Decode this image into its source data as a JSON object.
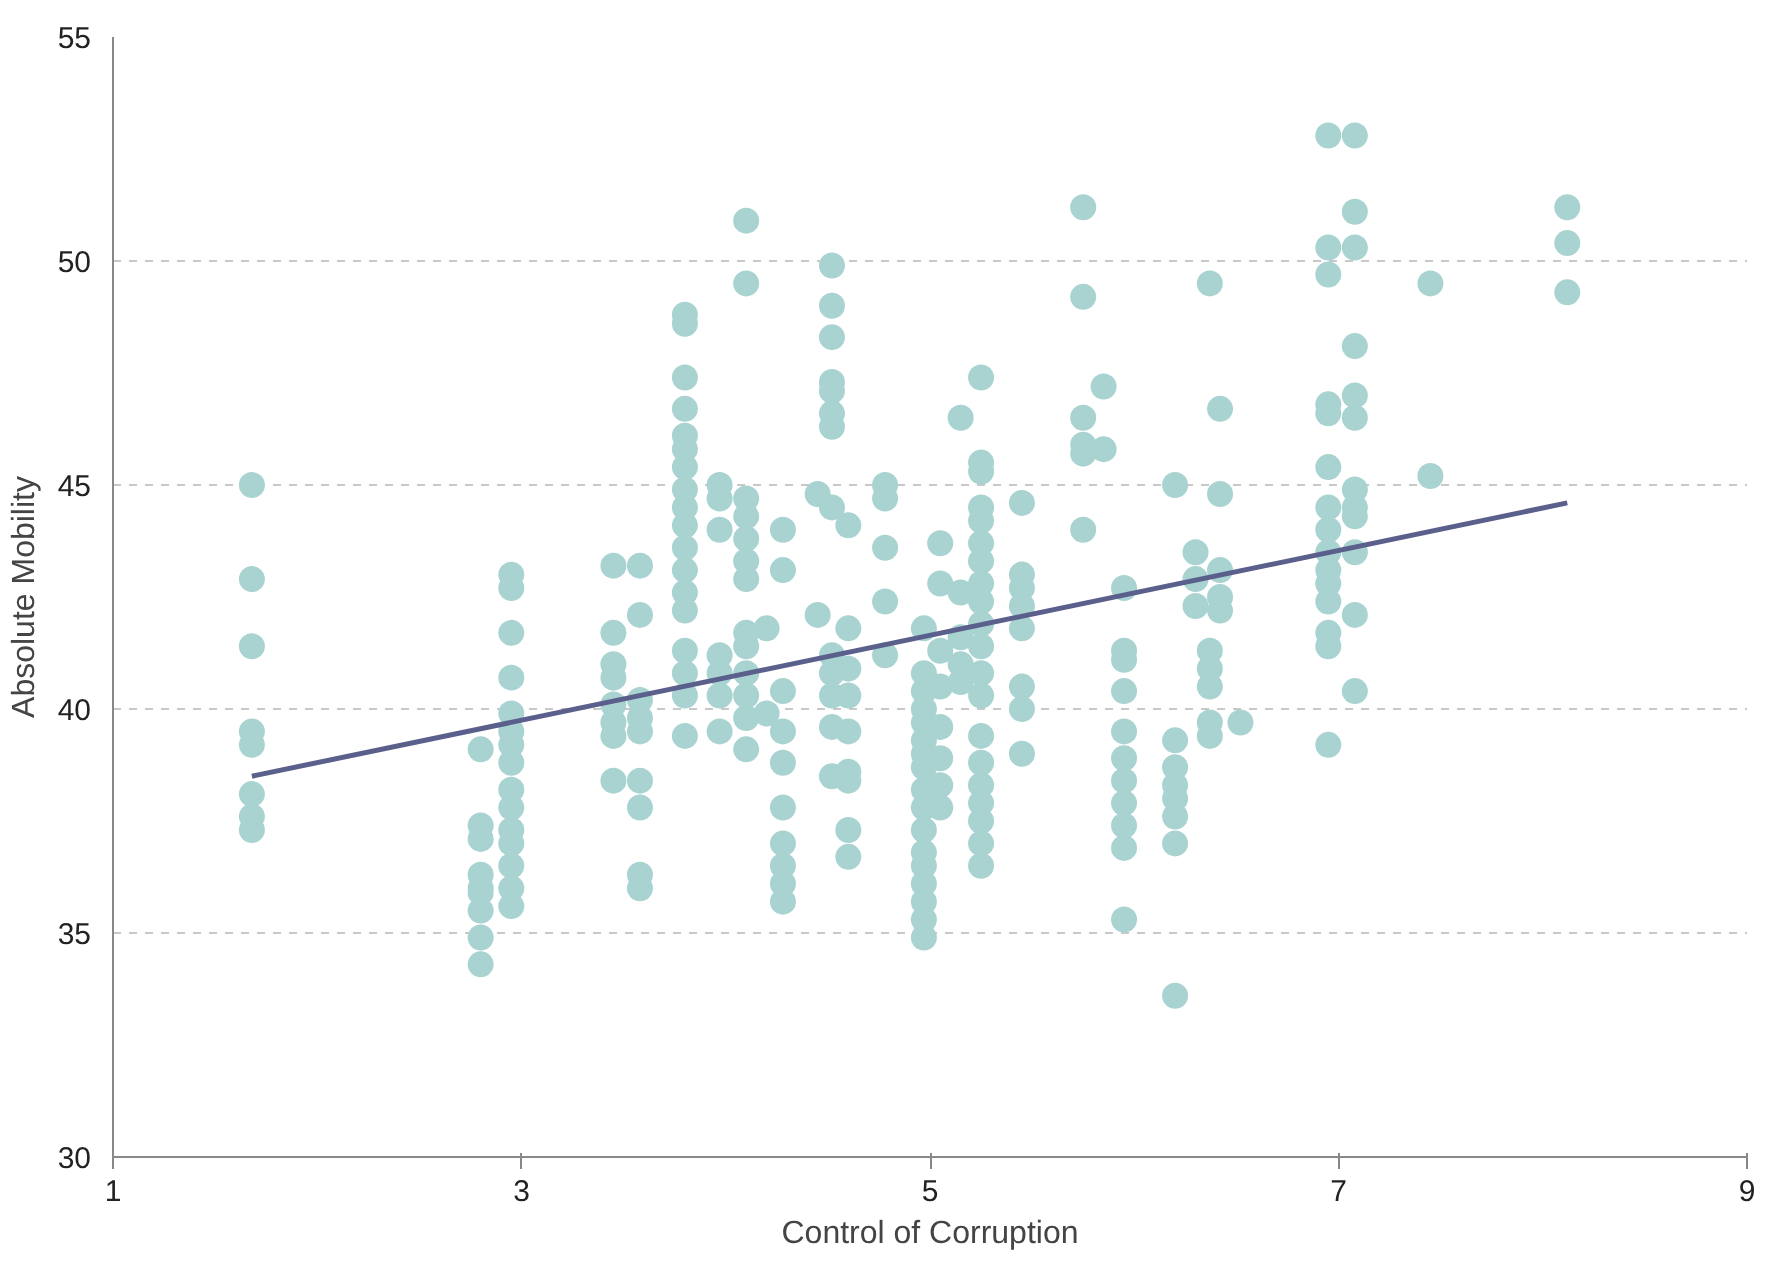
{
  "chart_data": {
    "type": "scatter",
    "xlabel": "Control of Corruption",
    "ylabel": "Absolute Mobility",
    "xlim": [
      1,
      9
    ],
    "xticks": [
      1,
      3,
      5,
      7,
      9
    ],
    "ylim": [
      30,
      55
    ],
    "yticks": [
      30,
      35,
      40,
      45,
      50,
      55
    ],
    "grid": "y",
    "marker": "circle",
    "series": [
      {
        "color": "#a8d3d0",
        "x": [
          1.68,
          1.68,
          1.68,
          1.68,
          1.68,
          1.68,
          1.68,
          1.68,
          2.8,
          2.8,
          2.8,
          2.8,
          2.8,
          2.8,
          2.8,
          2.8,
          2.8,
          2.95,
          2.95,
          2.95,
          2.95,
          2.95,
          2.95,
          2.95,
          2.95,
          2.95,
          2.95,
          2.95,
          2.95,
          2.95,
          2.95,
          2.95,
          3.45,
          3.45,
          3.45,
          3.45,
          3.45,
          3.45,
          3.45,
          3.45,
          3.58,
          3.58,
          3.58,
          3.58,
          3.58,
          3.58,
          3.58,
          3.58,
          3.58,
          3.8,
          3.8,
          3.8,
          3.8,
          3.8,
          3.8,
          3.8,
          3.8,
          3.8,
          3.8,
          3.8,
          3.8,
          3.8,
          3.8,
          3.8,
          3.8,
          3.8,
          3.8,
          3.97,
          3.97,
          3.97,
          3.97,
          3.97,
          3.97,
          3.97,
          4.1,
          4.1,
          4.1,
          4.1,
          4.1,
          4.1,
          4.1,
          4.1,
          4.1,
          4.1,
          4.1,
          4.1,
          4.1,
          4.2,
          4.2,
          4.28,
          4.28,
          4.28,
          4.28,
          4.28,
          4.28,
          4.28,
          4.28,
          4.28,
          4.28,
          4.45,
          4.45,
          4.52,
          4.52,
          4.52,
          4.52,
          4.52,
          4.52,
          4.52,
          4.52,
          4.52,
          4.52,
          4.52,
          4.52,
          4.52,
          4.6,
          4.6,
          4.6,
          4.6,
          4.6,
          4.6,
          4.6,
          4.6,
          4.6,
          4.78,
          4.78,
          4.78,
          4.78,
          4.78,
          4.97,
          4.97,
          4.97,
          4.97,
          4.97,
          4.97,
          4.97,
          4.97,
          4.97,
          4.97,
          4.97,
          4.97,
          4.97,
          4.97,
          4.97,
          4.97,
          4.97,
          5.05,
          5.05,
          5.05,
          5.05,
          5.05,
          5.05,
          5.05,
          5.05,
          5.15,
          5.15,
          5.15,
          5.15,
          5.15,
          5.25,
          5.25,
          5.25,
          5.25,
          5.25,
          5.25,
          5.25,
          5.25,
          5.25,
          5.25,
          5.25,
          5.25,
          5.25,
          5.25,
          5.25,
          5.25,
          5.25,
          5.25,
          5.25,
          5.25,
          5.45,
          5.45,
          5.45,
          5.45,
          5.45,
          5.45,
          5.45,
          5.45,
          5.75,
          5.75,
          5.75,
          5.75,
          5.75,
          5.75,
          5.85,
          5.85,
          5.95,
          5.95,
          5.95,
          5.95,
          5.95,
          5.95,
          5.95,
          5.95,
          5.95,
          5.95,
          5.95,
          6.2,
          6.2,
          6.2,
          6.2,
          6.2,
          6.2,
          6.2,
          6.2,
          6.3,
          6.3,
          6.3,
          6.37,
          6.37,
          6.37,
          6.37,
          6.37,
          6.37,
          6.42,
          6.42,
          6.42,
          6.42,
          6.42,
          6.52,
          6.95,
          6.95,
          6.95,
          6.95,
          6.95,
          6.95,
          6.95,
          6.95,
          6.95,
          6.95,
          6.95,
          6.95,
          6.95,
          6.95,
          6.95,
          7.08,
          7.08,
          7.08,
          7.08,
          7.08,
          7.08,
          7.08,
          7.08,
          7.08,
          7.08,
          7.08,
          7.08,
          7.45,
          7.45,
          8.12,
          8.12,
          8.12
        ],
        "values": [
          45,
          42.9,
          41.4,
          39.5,
          39.2,
          38.1,
          37.6,
          37.3,
          39.1,
          37.4,
          37.1,
          36.3,
          35.9,
          35.5,
          34.9,
          34.3,
          36,
          43,
          42.7,
          41.7,
          40.7,
          39.9,
          39.5,
          39.2,
          38.8,
          38.2,
          37.8,
          37.3,
          37,
          36.5,
          36,
          35.6,
          43.2,
          41.7,
          41,
          40.7,
          40.1,
          39.7,
          39.4,
          38.4,
          43.2,
          42.1,
          40.2,
          39.8,
          39.5,
          38.4,
          37.8,
          36.3,
          36,
          48.8,
          48.6,
          47.4,
          46.7,
          46.1,
          45.8,
          45.4,
          44.9,
          44.5,
          44.1,
          43.6,
          43.1,
          42.6,
          42.2,
          41.3,
          40.8,
          40.3,
          39.4,
          45,
          44.7,
          44,
          41.2,
          40.8,
          40.3,
          39.5,
          50.9,
          49.5,
          44.7,
          44.3,
          43.8,
          43.3,
          42.9,
          41.7,
          41.4,
          40.8,
          40.3,
          39.8,
          39.1,
          41.8,
          39.9,
          44,
          43.1,
          40.4,
          39.5,
          38.8,
          37.8,
          37,
          36.5,
          36.1,
          35.7,
          44.8,
          42.1,
          49.9,
          49,
          48.3,
          47.3,
          47.1,
          46.6,
          46.3,
          44.5,
          41.2,
          40.8,
          40.3,
          39.6,
          38.5,
          44.1,
          41.8,
          40.9,
          40.3,
          39.5,
          38.6,
          38.4,
          37.3,
          36.7,
          45,
          44.7,
          43.6,
          42.4,
          41.2,
          41.8,
          40.8,
          40.4,
          40,
          39.7,
          39.3,
          39,
          38.7,
          38.2,
          37.8,
          37.3,
          36.8,
          36.5,
          36.1,
          35.7,
          35.3,
          34.9,
          43.7,
          42.8,
          41.3,
          40.5,
          39.6,
          38.9,
          38.3,
          37.8,
          46.5,
          42.6,
          41.6,
          41,
          40.6,
          47.4,
          45.5,
          45.3,
          44.5,
          44.2,
          43.7,
          43.3,
          42.8,
          42.4,
          41.9,
          41.4,
          40.8,
          40.3,
          39.4,
          38.8,
          38.3,
          37.9,
          37.5,
          37,
          36.5,
          44.6,
          43,
          42.7,
          42.3,
          41.8,
          40.5,
          40,
          39,
          51.2,
          49.2,
          46.5,
          45.9,
          45.7,
          44,
          47.2,
          45.8,
          42.7,
          41.3,
          41.1,
          40.4,
          39.5,
          38.9,
          38.4,
          37.9,
          37.4,
          36.9,
          35.3,
          45,
          39.3,
          38.7,
          38.3,
          38,
          37.6,
          37,
          33.6,
          43.5,
          42.9,
          42.3,
          49.5,
          41.3,
          40.9,
          40.5,
          39.7,
          39.4,
          46.7,
          44.8,
          43.1,
          42.5,
          42.2,
          39.7,
          52.8,
          50.3,
          49.7,
          46.8,
          46.6,
          45.4,
          44.5,
          44,
          43.5,
          43.1,
          42.8,
          42.4,
          41.7,
          41.4,
          39.2,
          52.8,
          51.1,
          50.3,
          48.1,
          47,
          46.5,
          44.9,
          44.5,
          44.3,
          43.5,
          42.1,
          40.4,
          49.5,
          45.2,
          51.2,
          50.4,
          49.3
        ]
      },
      {
        "type": "line",
        "color": "#5a5f8c",
        "marker": "none",
        "x": [
          1.68,
          8.12
        ],
        "values": [
          38.5,
          44.6
        ]
      }
    ]
  }
}
